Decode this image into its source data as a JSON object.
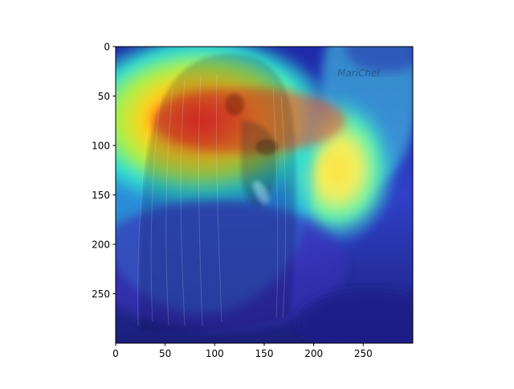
{
  "chart_data": {
    "type": "heatmap",
    "title": "",
    "xlabel": "",
    "ylabel": "",
    "xlim": [
      0,
      300
    ],
    "ylim": [
      300,
      0
    ],
    "x_ticks": [
      0,
      50,
      100,
      150,
      200,
      250
    ],
    "y_ticks": [
      0,
      50,
      100,
      150,
      200,
      250
    ],
    "image": {
      "subject": "long-haired dog",
      "overlay": "attention heatmap",
      "colormap": "jet",
      "peak": {
        "x": 105,
        "y": 70,
        "value": 1.0
      },
      "watermark": "MariChel"
    },
    "grid": false,
    "legend": "none"
  }
}
